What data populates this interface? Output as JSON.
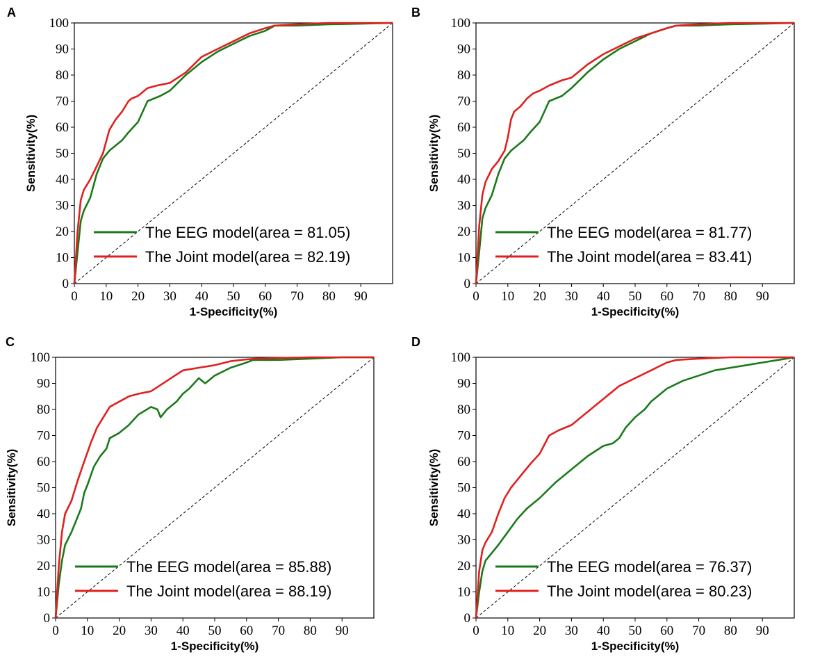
{
  "colors": {
    "eeg": "#1a7a1a",
    "joint": "#e0201f"
  },
  "chart_data": [
    {
      "panel": "A",
      "type": "line",
      "xlabel": "1-Specificity(%)",
      "ylabel": "Sensitivity(%)",
      "xlim": [
        0,
        100
      ],
      "ylim": [
        0,
        100
      ],
      "xticks": [
        0,
        10,
        20,
        30,
        40,
        50,
        60,
        70,
        80,
        90
      ],
      "yticks": [
        0,
        10,
        20,
        30,
        40,
        50,
        60,
        70,
        80,
        90,
        100
      ],
      "legend_position": "lower-right",
      "series": [
        {
          "name": "EEG",
          "label": "The EEG model(area = 81.05)",
          "x": [
            0,
            1,
            2,
            3,
            5,
            7,
            9,
            11,
            13,
            15,
            17,
            20,
            23,
            27,
            30,
            35,
            40,
            45,
            50,
            55,
            60,
            63,
            70,
            80,
            90,
            100
          ],
          "y": [
            0,
            12,
            24,
            28,
            33,
            42,
            48,
            51,
            53,
            55,
            58,
            62,
            70,
            72,
            74,
            80,
            85,
            89,
            92,
            95,
            97,
            99,
            99,
            99.5,
            99.7,
            100
          ]
        },
        {
          "name": "Joint",
          "label": "The Joint model(area = 82.19)",
          "x": [
            0,
            1,
            2,
            3,
            5,
            7,
            9,
            11,
            13,
            15,
            17,
            18,
            20,
            23,
            26,
            30,
            35,
            40,
            45,
            50,
            55,
            60,
            63,
            70,
            80,
            90,
            100
          ],
          "y": [
            0,
            20,
            32,
            36,
            40,
            45,
            50,
            59,
            63,
            66,
            70,
            71,
            72,
            75,
            76,
            77,
            81,
            87,
            90,
            93,
            96,
            98,
            99,
            99.5,
            100,
            100,
            100
          ]
        }
      ]
    },
    {
      "panel": "B",
      "type": "line",
      "xlabel": "1-Specificity(%)",
      "ylabel": "Sensitivity(%)",
      "xlim": [
        0,
        100
      ],
      "ylim": [
        0,
        100
      ],
      "xticks": [
        0,
        10,
        20,
        30,
        40,
        50,
        60,
        70,
        80,
        90
      ],
      "yticks": [
        0,
        10,
        20,
        30,
        40,
        50,
        60,
        70,
        80,
        90,
        100
      ],
      "legend_position": "lower-right",
      "series": [
        {
          "name": "EEG",
          "label": "The EEG model(area = 81.77)",
          "x": [
            0,
            1,
            2,
            3,
            5,
            7,
            9,
            11,
            13,
            15,
            17,
            20,
            23,
            27,
            30,
            35,
            40,
            45,
            50,
            55,
            60,
            63,
            70,
            80,
            90,
            100
          ],
          "y": [
            0,
            12,
            25,
            29,
            34,
            42,
            48,
            51,
            53,
            55,
            58,
            62,
            70,
            72,
            75,
            81,
            86,
            90,
            93,
            96,
            98,
            99,
            99,
            99.5,
            99.7,
            100
          ]
        },
        {
          "name": "Joint",
          "label": "The Joint model(area = 83.41)",
          "x": [
            0,
            1,
            2,
            3,
            5,
            7,
            9,
            10,
            11,
            12,
            14,
            16,
            18,
            20,
            23,
            27,
            30,
            35,
            40,
            45,
            50,
            55,
            60,
            63,
            70,
            80,
            90,
            100
          ],
          "y": [
            0,
            22,
            34,
            39,
            44,
            47,
            51,
            56,
            63,
            66,
            68,
            71,
            73,
            74,
            76,
            78,
            79,
            84,
            88,
            91,
            94,
            96,
            98,
            99,
            99.5,
            100,
            100,
            100
          ]
        }
      ]
    },
    {
      "panel": "C",
      "type": "line",
      "xlabel": "1-Specificity(%)",
      "ylabel": "Sensitivity(%)",
      "xlim": [
        0,
        100
      ],
      "ylim": [
        0,
        100
      ],
      "xticks": [
        0,
        10,
        20,
        30,
        40,
        50,
        60,
        70,
        80,
        90
      ],
      "yticks": [
        0,
        10,
        20,
        30,
        40,
        50,
        60,
        70,
        80,
        90,
        100
      ],
      "legend_position": "lower-right",
      "series": [
        {
          "name": "EEG",
          "label": "The EEG model(area = 85.88)",
          "x": [
            0,
            1,
            2,
            3,
            5,
            7,
            8,
            9,
            10,
            12,
            14,
            16,
            17,
            20,
            23,
            26,
            30,
            32,
            33,
            35,
            38,
            40,
            42,
            45,
            47,
            50,
            55,
            60,
            62,
            70,
            80,
            90,
            100
          ],
          "y": [
            0,
            13,
            22,
            28,
            33,
            39,
            42,
            48,
            51,
            58,
            62,
            65,
            69,
            71,
            74,
            78,
            81,
            80,
            77,
            80,
            83,
            86,
            88,
            92,
            90,
            93,
            96,
            98,
            99,
            99,
            99.5,
            100,
            100
          ]
        },
        {
          "name": "Joint",
          "label": "The Joint model(area = 88.19)",
          "x": [
            0,
            1,
            2,
            3,
            5,
            7,
            9,
            11,
            13,
            15,
            17,
            20,
            23,
            26,
            30,
            35,
            40,
            45,
            50,
            55,
            60,
            63,
            70,
            80,
            90,
            100
          ],
          "y": [
            0,
            20,
            33,
            40,
            45,
            53,
            60,
            67,
            73,
            77,
            81,
            83,
            85,
            86,
            87,
            91,
            95,
            96,
            97,
            98.5,
            99.2,
            99.5,
            99.7,
            100,
            100,
            100
          ]
        }
      ]
    },
    {
      "panel": "D",
      "type": "line",
      "xlabel": "1-Specificity(%)",
      "ylabel": "Sensitivity(%)",
      "xlim": [
        0,
        100
      ],
      "ylim": [
        0,
        100
      ],
      "xticks": [
        0,
        10,
        20,
        30,
        40,
        50,
        60,
        70,
        80,
        90
      ],
      "yticks": [
        0,
        10,
        20,
        30,
        40,
        50,
        60,
        70,
        80,
        90,
        100
      ],
      "legend_position": "lower-right",
      "series": [
        {
          "name": "EEG",
          "label": "The EEG model(area = 76.37)",
          "x": [
            0,
            1,
            2,
            3,
            5,
            7,
            10,
            13,
            16,
            20,
            25,
            30,
            35,
            40,
            43,
            45,
            47,
            50,
            53,
            55,
            58,
            60,
            65,
            70,
            75,
            80,
            85,
            90,
            95,
            100
          ],
          "y": [
            0,
            10,
            18,
            22,
            25,
            28,
            33,
            38,
            42,
            46,
            52,
            57,
            62,
            66,
            67,
            69,
            73,
            77,
            80,
            83,
            86,
            88,
            91,
            93,
            95,
            96,
            97,
            98,
            99,
            100
          ]
        },
        {
          "name": "Joint",
          "label": "The Joint model(area = 80.23)",
          "x": [
            0,
            1,
            2,
            3,
            5,
            7,
            9,
            11,
            13,
            15,
            17,
            20,
            23,
            26,
            30,
            35,
            40,
            45,
            50,
            55,
            60,
            63,
            70,
            80,
            90,
            100
          ],
          "y": [
            0,
            18,
            26,
            29,
            33,
            40,
            46,
            50,
            53,
            56,
            59,
            63,
            70,
            72,
            74,
            79,
            84,
            89,
            92,
            95,
            98,
            99,
            99.5,
            100,
            100,
            100
          ]
        }
      ]
    }
  ]
}
